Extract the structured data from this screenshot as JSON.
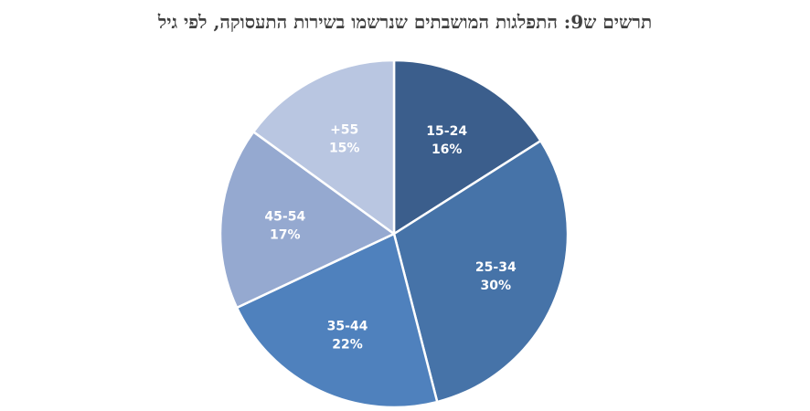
{
  "chart_data": {
    "type": "pie",
    "title": "תרשים ש9: התפלגות המושבתים שנרשמו בשירות התעסוקה, לפי גיל",
    "categories": [
      "15-24",
      "25-34",
      "35-44",
      "45-54",
      "55+"
    ],
    "values": [
      16,
      30,
      22,
      17,
      15
    ],
    "labels": [
      {
        "category": "15-24",
        "percent": "16%"
      },
      {
        "category": "25-34",
        "percent": "30%"
      },
      {
        "category": "35-44",
        "percent": "22%"
      },
      {
        "category": "45-54",
        "percent": "17%"
      },
      {
        "category": "+55",
        "percent": "15%"
      }
    ],
    "colors": [
      "#3b5e8c",
      "#4673a8",
      "#4f81bd",
      "#95a9d0",
      "#b9c6e1"
    ],
    "legend": "none"
  }
}
